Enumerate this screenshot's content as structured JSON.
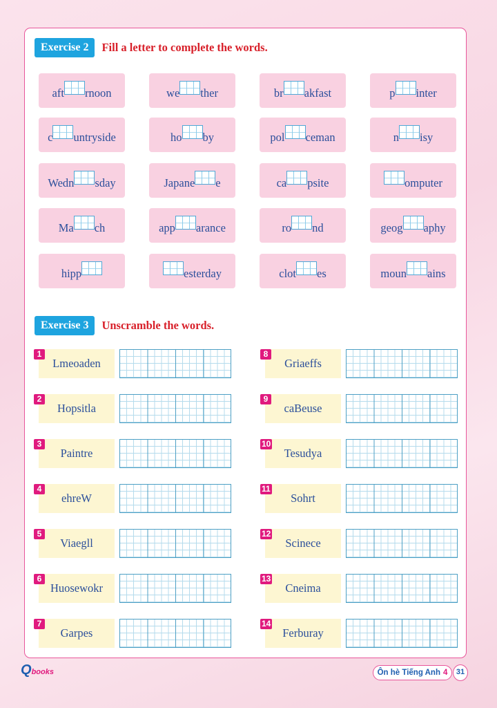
{
  "exercise2": {
    "badge": "Exercise 2",
    "title": "Fill a letter to complete the words.",
    "words": [
      [
        "aft",
        "rnoon"
      ],
      [
        "we",
        "ther"
      ],
      [
        "br",
        "akfast"
      ],
      [
        "p",
        "inter"
      ],
      [
        "c",
        "untryside"
      ],
      [
        "ho",
        "by"
      ],
      [
        "pol",
        "ceman"
      ],
      [
        "n",
        "isy"
      ],
      [
        "Wedn",
        "sday"
      ],
      [
        "Japane",
        "e"
      ],
      [
        "ca",
        "psite"
      ],
      [
        "",
        "omputer"
      ],
      [
        "Ma",
        "ch"
      ],
      [
        "app",
        "arance"
      ],
      [
        "ro",
        "nd"
      ],
      [
        "geog",
        "aphy"
      ],
      [
        "hipp",
        ""
      ],
      [
        "",
        "esterday"
      ],
      [
        "clot",
        "es"
      ],
      [
        "moun",
        "ains"
      ]
    ]
  },
  "exercise3": {
    "badge": "Exercise 3",
    "title": "Unscramble the words.",
    "items": [
      {
        "num": "1",
        "word": "Lmeoaden"
      },
      {
        "num": "2",
        "word": "Hopsitla"
      },
      {
        "num": "3",
        "word": "Paintre"
      },
      {
        "num": "4",
        "word": "ehreW"
      },
      {
        "num": "5",
        "word": "Viaegll"
      },
      {
        "num": "6",
        "word": "Huosewokr"
      },
      {
        "num": "7",
        "word": "Garpes"
      },
      {
        "num": "8",
        "word": "Griaeffs"
      },
      {
        "num": "9",
        "word": "caBeuse"
      },
      {
        "num": "10",
        "word": "Tesudya"
      },
      {
        "num": "11",
        "word": "Sohrt"
      },
      {
        "num": "12",
        "word": "Scinece"
      },
      {
        "num": "13",
        "word": "Cneima"
      },
      {
        "num": "14",
        "word": "Ferburay"
      }
    ]
  },
  "footer": {
    "logo": "Qbooks",
    "book_title": "Ôn hè Tiếng Anh",
    "grade": "4",
    "page": "31"
  },
  "colors": {
    "accent_blue": "#1ea4df",
    "title_red": "#d8202a",
    "border_pink": "#e8559a",
    "number_magenta": "#e01a7e"
  }
}
